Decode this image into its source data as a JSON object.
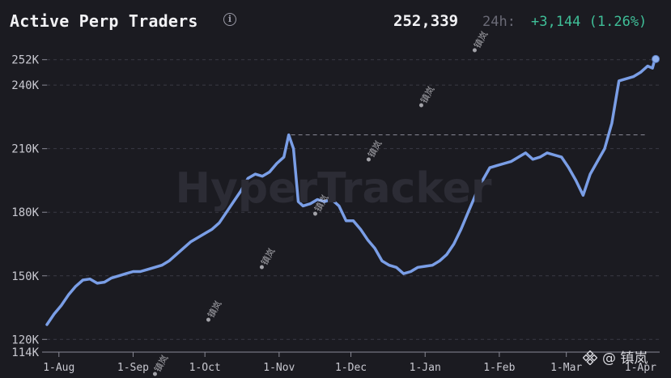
{
  "header": {
    "title": "Active Perp Traders",
    "info_icon": "info-icon",
    "current_value": "252,339",
    "period_label": "24h:",
    "change": "+3,144 (1.26%)"
  },
  "colors": {
    "background": "#1b1b21",
    "line": "#7a9ee6",
    "grid": "#3a3a44",
    "axis_text": "#c8c8d0",
    "change_positive": "#3fbf98"
  },
  "chart_data": {
    "type": "line",
    "title": "Active Perp Traders",
    "ylim": [
      114000,
      258000
    ],
    "yticks": [
      {
        "value": 114000,
        "label": "114K"
      },
      {
        "value": 120000,
        "label": "120K"
      },
      {
        "value": 150000,
        "label": "150K"
      },
      {
        "value": 180000,
        "label": "180K"
      },
      {
        "value": 210000,
        "label": "210K"
      },
      {
        "value": 240000,
        "label": "240K"
      },
      {
        "value": 252000,
        "label": "252K"
      }
    ],
    "xlim": [
      "2024-07-27",
      "2025-04-09"
    ],
    "xticks": [
      {
        "date": "2024-08-01",
        "label": "1-Aug"
      },
      {
        "date": "2024-09-01",
        "label": "1-Sep"
      },
      {
        "date": "2024-10-01",
        "label": "1-Oct"
      },
      {
        "date": "2024-11-01",
        "label": "1-Nov"
      },
      {
        "date": "2024-12-01",
        "label": "1-Dec"
      },
      {
        "date": "2025-01-01",
        "label": "1-Jan"
      },
      {
        "date": "2025-02-01",
        "label": "1-Feb"
      },
      {
        "date": "2025-03-01",
        "label": "1-Mar"
      },
      {
        "date": "2025-04-01",
        "label": "1-Apr"
      }
    ],
    "grid": "horizontal dashed",
    "reference_line": {
      "value": 216500,
      "from_date": "2024-11-06"
    },
    "endpoint_marker": true,
    "series": [
      {
        "x": [
          "2024-07-27",
          "2024-07-30",
          "2024-08-02",
          "2024-08-05",
          "2024-08-08",
          "2024-08-11",
          "2024-08-14",
          "2024-08-17",
          "2024-08-20",
          "2024-08-23",
          "2024-08-26",
          "2024-08-29",
          "2024-09-01",
          "2024-09-04",
          "2024-09-07",
          "2024-09-10",
          "2024-09-13",
          "2024-09-16",
          "2024-09-19",
          "2024-09-22",
          "2024-09-25",
          "2024-09-28",
          "2024-10-01",
          "2024-10-04",
          "2024-10-07",
          "2024-10-10",
          "2024-10-13",
          "2024-10-16",
          "2024-10-19",
          "2024-10-22",
          "2024-10-25",
          "2024-10-28",
          "2024-10-31",
          "2024-11-03",
          "2024-11-05",
          "2024-11-07",
          "2024-11-09",
          "2024-11-11",
          "2024-11-14",
          "2024-11-17",
          "2024-11-20",
          "2024-11-23",
          "2024-11-26",
          "2024-11-29",
          "2024-12-02",
          "2024-12-05",
          "2024-12-08",
          "2024-12-11",
          "2024-12-14",
          "2024-12-17",
          "2024-12-20",
          "2024-12-23",
          "2024-12-26",
          "2024-12-29",
          "2025-01-01",
          "2025-01-04",
          "2025-01-07",
          "2025-01-10",
          "2025-01-13",
          "2025-01-16",
          "2025-01-19",
          "2025-01-22",
          "2025-01-25",
          "2025-01-28",
          "2025-01-31",
          "2025-02-03",
          "2025-02-06",
          "2025-02-09",
          "2025-02-12",
          "2025-02-15",
          "2025-02-18",
          "2025-02-21",
          "2025-02-24",
          "2025-02-27",
          "2025-03-02",
          "2025-03-05",
          "2025-03-08",
          "2025-03-11",
          "2025-03-14",
          "2025-03-17",
          "2025-03-20",
          "2025-03-23",
          "2025-03-26",
          "2025-03-29",
          "2025-04-01",
          "2025-04-04",
          "2025-04-06",
          "2025-04-07"
        ],
        "y": [
          127000,
          132000,
          136000,
          141000,
          145000,
          148000,
          148500,
          146500,
          147000,
          149000,
          150000,
          151000,
          152000,
          152000,
          153000,
          154000,
          155000,
          157000,
          160000,
          163000,
          166000,
          168000,
          170000,
          172000,
          175000,
          180000,
          185000,
          190000,
          196000,
          198000,
          197000,
          199000,
          203000,
          206000,
          216500,
          210000,
          185000,
          183000,
          184000,
          186000,
          185000,
          186000,
          183000,
          176000,
          176000,
          172000,
          167000,
          163000,
          157000,
          155000,
          154000,
          151000,
          152000,
          154000,
          154500,
          155000,
          157000,
          160000,
          165000,
          172000,
          180000,
          188000,
          195000,
          201000,
          202000,
          203000,
          204000,
          206000,
          208000,
          205000,
          206000,
          208000,
          207000,
          206000,
          201000,
          195000,
          188000,
          198000,
          204000,
          210000,
          222000,
          242000,
          243000,
          244000,
          246000,
          249000,
          248000,
          252300
        ]
      }
    ]
  },
  "watermarks": {
    "user_tag": "镇岚",
    "brand_text": "@ 镇岚",
    "brand_icon": "binance-square-logo",
    "background_logo": "HyperTracker"
  }
}
